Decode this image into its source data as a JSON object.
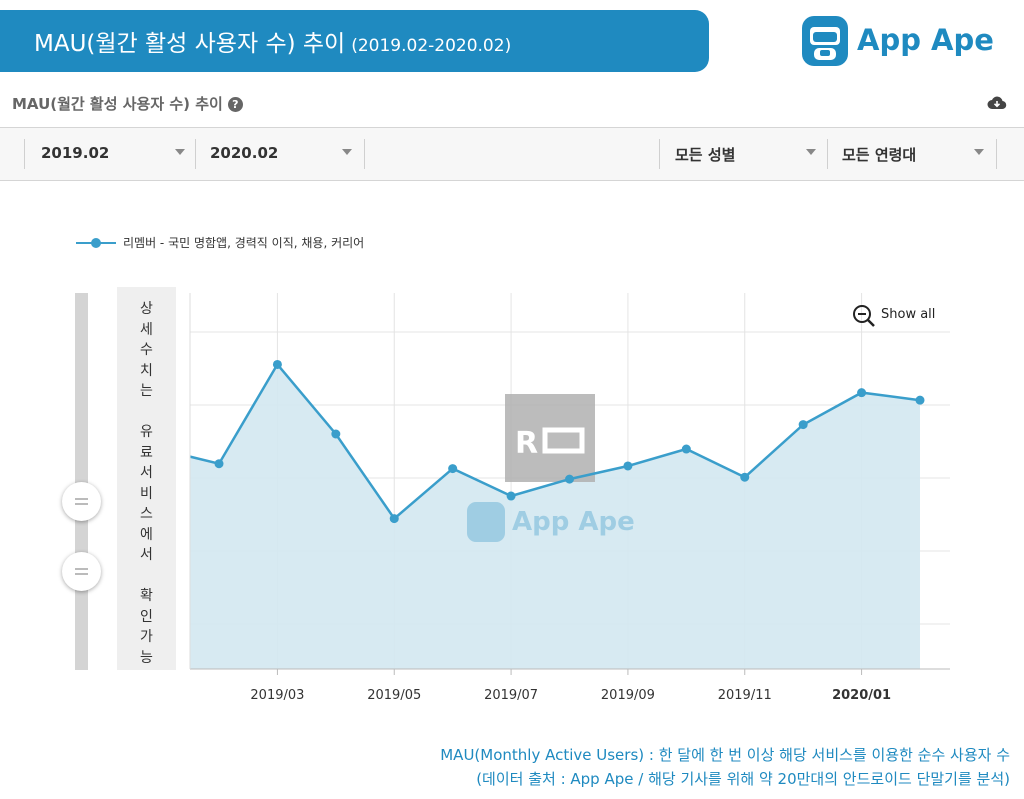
{
  "header": {
    "title": "MAU(월간 활성 사용자 수) 추이",
    "period": "(2019.02-2020.02)",
    "brand": "App Ape"
  },
  "panel": {
    "title": "MAU(월간 활성 사용자 수) 추이",
    "help_icon": "question-circle-icon",
    "download_icon": "cloud-download-icon"
  },
  "filters": {
    "start": "2019.02",
    "end": "2020.02",
    "gender": "모든 성별",
    "age": "모든 연령대"
  },
  "side_note": "상\n세\n수\n치\n는\n\n유\n료\n서\n비\n스\n에\n서\n\n확\n인\n가\n능",
  "watermark": "App Ape",
  "show_all_label": "Show all",
  "chart_data": {
    "type": "area",
    "title": "MAU(월간 활성 사용자 수) 추이",
    "series": [
      {
        "name": "리멤버 - 국민 명함앱, 경력직 이직, 채용, 커리어",
        "color": "#3a9ecb",
        "points": [
          {
            "x": "2019.02 (start)",
            "y": 56.5
          },
          {
            "x": "2019.02",
            "y": 54.6
          },
          {
            "x": "2019.03",
            "y": 81.0
          },
          {
            "x": "2019.04",
            "y": 62.5
          },
          {
            "x": "2019.05",
            "y": 40.0
          },
          {
            "x": "2019.06",
            "y": 53.3
          },
          {
            "x": "2019.07",
            "y": 46.0
          },
          {
            "x": "2019.08",
            "y": 50.5
          },
          {
            "x": "2019.09",
            "y": 54.0
          },
          {
            "x": "2019.10",
            "y": 58.5
          },
          {
            "x": "2019.11",
            "y": 51.0
          },
          {
            "x": "2019.12",
            "y": 65.0
          },
          {
            "x": "2020.01",
            "y": 73.5
          },
          {
            "x": "2020.02",
            "y": 71.5
          }
        ]
      }
    ],
    "x_tick_labels": [
      "2019/03",
      "2019/05",
      "2019/07",
      "2019/09",
      "2019/11",
      "2020/01"
    ],
    "highlight_tick": "2020/01",
    "y_tick_labels": [],
    "ylim": [
      0,
      100
    ],
    "grid": true,
    "xlabel": "",
    "ylabel": ""
  },
  "footnotes": [
    "MAU(Monthly Active Users) : 한 달에 한 번 이상 해당 서비스를 이용한 순수 사용자 수",
    "(데이터 출처 : App Ape / 해당 기사를 위해 약 20만대의 안드로이드 단말기를 분석)"
  ],
  "colors": {
    "accent": "#1f8ac0",
    "line": "#3a9ecb",
    "fill": "#d3e8f1"
  }
}
